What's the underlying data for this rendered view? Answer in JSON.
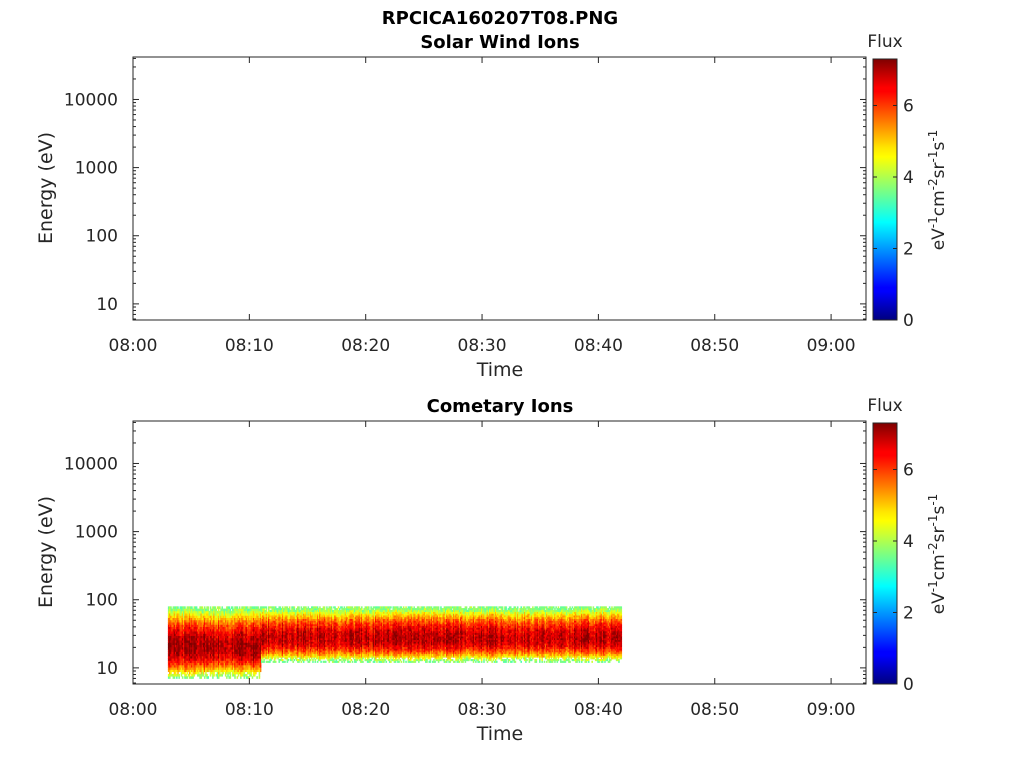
{
  "figure": {
    "filename_title": "RPCICA160207T08.PNG"
  },
  "colorbar": {
    "label_title": "Flux",
    "unit_parts": [
      "eV",
      "-1",
      "cm",
      "-2",
      "sr",
      "-1",
      "s",
      "-1"
    ],
    "ticks": [
      "0",
      "2",
      "4",
      "6"
    ],
    "range": [
      0,
      7.3
    ],
    "colormap": "jet"
  },
  "chart_data": [
    {
      "type": "heatmap",
      "title": "Solar Wind Ions",
      "xlabel": "Time",
      "ylabel": "Energy (eV)",
      "x_ticks": [
        "08:00",
        "08:10",
        "08:20",
        "08:30",
        "08:40",
        "08:50",
        "09:00"
      ],
      "y_ticks": [
        "10",
        "100",
        "1000",
        "10000"
      ],
      "y_scale": "log",
      "xlim": [
        "08:00",
        "09:03"
      ],
      "ylim": [
        5.8,
        42000
      ],
      "blocks": []
    },
    {
      "type": "heatmap",
      "title": "Cometary Ions",
      "xlabel": "Time",
      "ylabel": "Energy (eV)",
      "x_ticks": [
        "08:00",
        "08:10",
        "08:20",
        "08:30",
        "08:40",
        "08:50",
        "09:00"
      ],
      "y_ticks": [
        "10",
        "100",
        "1000",
        "10000"
      ],
      "y_scale": "log",
      "xlim": [
        "08:00",
        "09:03"
      ],
      "ylim": [
        5.8,
        42000
      ],
      "blocks": [
        {
          "t_start": "08:03",
          "t_end": "08:11",
          "e_min": 7,
          "e_max": 80,
          "e_peak": 20,
          "peak_flux": 7.0
        },
        {
          "t_start": "08:11",
          "t_end": "08:42",
          "e_min": 12,
          "e_max": 80,
          "e_peak": 27,
          "peak_flux": 6.8
        }
      ]
    }
  ]
}
